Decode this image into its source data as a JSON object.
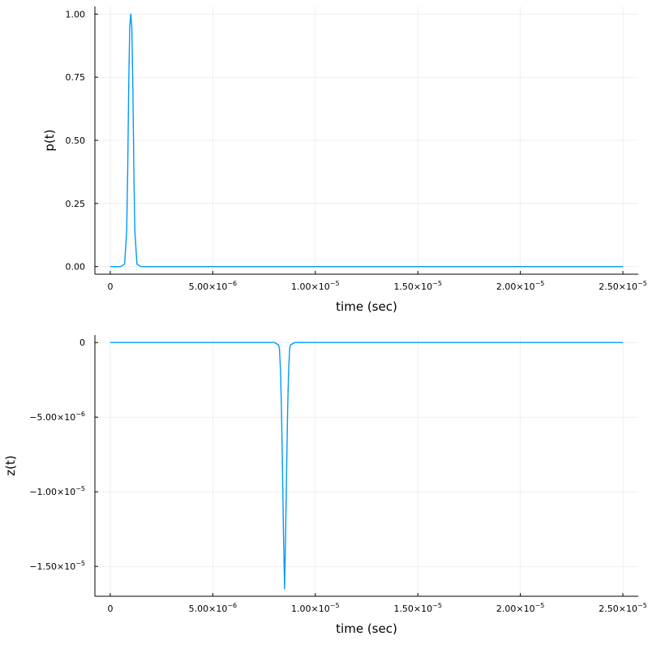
{
  "colors": {
    "series": "#009AF9",
    "axis": "#000000"
  },
  "chart_data": [
    {
      "type": "line",
      "title": "",
      "xlabel": "time (sec)",
      "ylabel": "p(t)",
      "xlim": [
        -7.5e-07,
        2.575e-05
      ],
      "ylim": [
        -0.03,
        1.03
      ],
      "xticks": [
        {
          "v": 0,
          "m": "0",
          "e": ""
        },
        {
          "v": 5e-06,
          "m": "5.00×10",
          "e": "−6"
        },
        {
          "v": 1e-05,
          "m": "1.00×10",
          "e": "−5"
        },
        {
          "v": 1.5e-05,
          "m": "1.50×10",
          "e": "−5"
        },
        {
          "v": 2e-05,
          "m": "2.00×10",
          "e": "−5"
        },
        {
          "v": 2.5e-05,
          "m": "2.50×10",
          "e": "−5"
        }
      ],
      "yticks": [
        {
          "v": 0,
          "m": "0.00",
          "e": ""
        },
        {
          "v": 0.25,
          "m": "0.25",
          "e": ""
        },
        {
          "v": 0.5,
          "m": "0.50",
          "e": ""
        },
        {
          "v": 0.75,
          "m": "0.75",
          "e": ""
        },
        {
          "v": 1.0,
          "m": "1.00",
          "e": ""
        }
      ],
      "grid": true,
      "legend": "none",
      "series": [
        {
          "x": [
            0,
            5e-07,
            7e-07,
            8e-07,
            8.5e-07,
            9e-07,
            9.5e-07,
            1e-06,
            1.05e-06,
            1.1e-06,
            1.15e-06,
            1.2e-06,
            1.3e-06,
            1.5e-06,
            5e-06,
            1e-05,
            1.5e-05,
            2e-05,
            2.5e-05
          ],
          "y": [
            0,
            0,
            0.01,
            0.14,
            0.38,
            0.72,
            0.95,
            1.0,
            0.95,
            0.72,
            0.38,
            0.14,
            0.01,
            0,
            0,
            0,
            0,
            0,
            0
          ]
        }
      ]
    },
    {
      "type": "line",
      "title": "",
      "xlabel": "time (sec)",
      "ylabel": "z(t)",
      "xlim": [
        -7.5e-07,
        2.575e-05
      ],
      "ylim": [
        -1.7e-05,
        5e-07
      ],
      "xticks": [
        {
          "v": 0,
          "m": "0",
          "e": ""
        },
        {
          "v": 5e-06,
          "m": "5.00×10",
          "e": "−6"
        },
        {
          "v": 1e-05,
          "m": "1.00×10",
          "e": "−5"
        },
        {
          "v": 1.5e-05,
          "m": "1.50×10",
          "e": "−5"
        },
        {
          "v": 2e-05,
          "m": "2.00×10",
          "e": "−5"
        },
        {
          "v": 2.5e-05,
          "m": "2.50×10",
          "e": "−5"
        }
      ],
      "yticks": [
        {
          "v": 0,
          "m": "0",
          "e": ""
        },
        {
          "v": -5e-06,
          "m": "−5.00×10",
          "e": "−6"
        },
        {
          "v": -1e-05,
          "m": "−1.00×10",
          "e": "−5"
        },
        {
          "v": -1.5e-05,
          "m": "−1.50×10",
          "e": "−5"
        }
      ],
      "grid": true,
      "legend": "none",
      "series": [
        {
          "x": [
            0,
            8e-06,
            8.2e-06,
            8.25e-06,
            8.3e-06,
            8.35e-06,
            8.4e-06,
            8.45e-06,
            8.5e-06,
            8.55e-06,
            8.6e-06,
            8.65e-06,
            8.7e-06,
            8.75e-06,
            8.8e-06,
            9e-06,
            1.5e-05,
            2.5e-05
          ],
          "y": [
            0,
            0,
            -1.5e-07,
            -4e-07,
            -1.8e-06,
            -4.5e-06,
            -8.5e-06,
            -1.3e-05,
            -1.65e-05,
            -1.3e-05,
            -8.5e-06,
            -4.5e-06,
            -1.8e-06,
            -4e-07,
            -1.5e-07,
            0,
            0,
            0
          ]
        }
      ]
    }
  ]
}
